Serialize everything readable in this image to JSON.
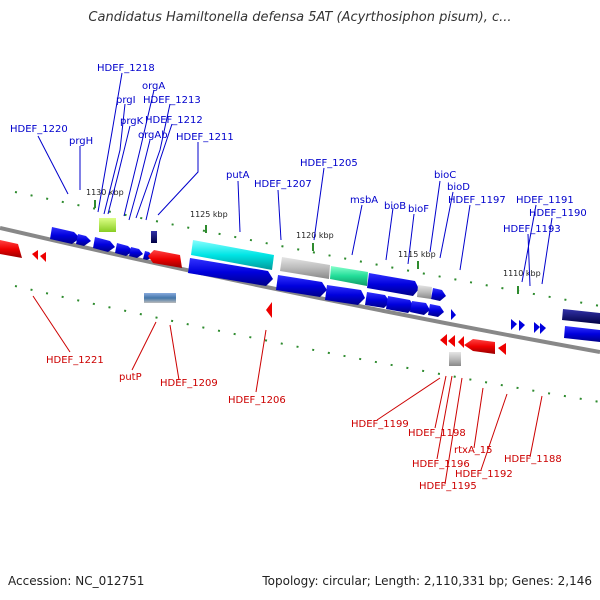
{
  "title": "Candidatus Hamiltonella defensa 5AT (Acyrthosiphon pisum), c...",
  "footer": {
    "accession": "Accession: NC_012751",
    "summary": "Topology: circular; Length: 2,110,331 bp; Genes: 2,146"
  },
  "colors": {
    "forward_label": "#0000cc",
    "reverse_label": "#cc0000",
    "backbone": "#888888",
    "tick": "#2e8b2e"
  },
  "kbp_ticks": [
    "1130 kbp",
    "1125 kbp",
    "1120 kbp",
    "1115 kbp",
    "1110 kbp"
  ],
  "forward_labels": [
    "HDEF_1218",
    "orgA",
    "prgI",
    "HDEF_1213",
    "prgK",
    "HDEF_1212",
    "HDEF_1220",
    "orgAb",
    "HDEF_1211",
    "prgH",
    "putA",
    "HDEF_1205",
    "HDEF_1207",
    "bioC",
    "bioD",
    "msbA",
    "HDEF_1197",
    "bioB",
    "bioF",
    "HDEF_1191",
    "HDEF_1190",
    "HDEF_1193"
  ],
  "reverse_labels": [
    "HDEF_1221",
    "putP",
    "HDEF_1209",
    "HDEF_1206",
    "HDEF_1199",
    "HDEF_1198",
    "rtxA_15",
    "HDEF_1196",
    "HDEF_1188",
    "HDEF_1192",
    "HDEF_1195"
  ]
}
